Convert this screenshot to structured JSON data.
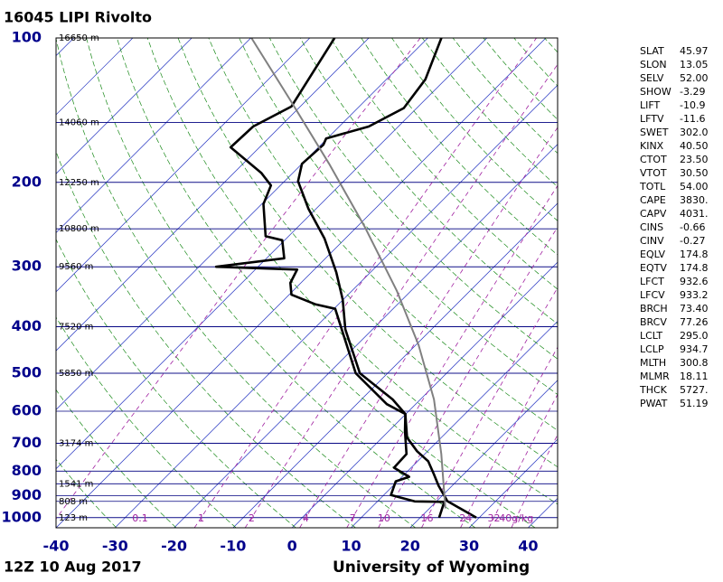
{
  "chart_data": {
    "type": "skewt",
    "title": "16045 LIPI Rivolto",
    "subtitle": "12Z 10 Aug 2017",
    "source": "University of Wyoming",
    "log_y": true,
    "ylim": [
      100,
      1050
    ],
    "yticks": [
      100,
      200,
      300,
      400,
      500,
      600,
      700,
      800,
      900,
      1000
    ],
    "xlim": [
      -40,
      45
    ],
    "xticks": [
      -40,
      -30,
      -20,
      -10,
      0,
      10,
      20,
      30,
      40
    ],
    "height_labels": [
      {
        "value": 100,
        "label": "16650 m"
      },
      {
        "value": 150,
        "label": "14060 m"
      },
      {
        "value": 200,
        "label": "12250 m"
      },
      {
        "value": 250,
        "label": "10800 m"
      },
      {
        "value": 300,
        "label": "9560 m"
      },
      {
        "value": 400,
        "label": "7520 m"
      },
      {
        "value": 500,
        "label": "5850 m"
      },
      {
        "value": 700,
        "label": "3174 m"
      },
      {
        "value": 850,
        "label": "1541 m"
      },
      {
        "value": 925,
        "label": "808 m"
      },
      {
        "value": 1000,
        "label": "123 m"
      }
    ],
    "mixing_ratios": [
      0.1,
      1,
      2,
      4,
      7,
      10,
      16,
      24,
      32,
      {
        "value": 40,
        "label": "40g/kg"
      }
    ],
    "series": [
      {
        "color": "#000000",
        "pressure": [
          1000,
          924,
          858,
          811,
          763,
          727,
          681,
          608,
          567,
          500,
          405,
          351,
          308,
          262,
          227,
          199,
          183,
          167,
          162,
          153,
          140,
          122,
          100
        ],
        "temperature": [
          29.5,
          21.8,
          17.7,
          14.9,
          11.8,
          8.2,
          4.2,
          -0.1,
          -4.7,
          -14.7,
          -24.6,
          -30.1,
          -35.8,
          -43.5,
          -51.3,
          -57.7,
          -60.0,
          -59.6,
          -60.2,
          -55.0,
          -52.2,
          -53.4,
          -57.7
        ]
      },
      {
        "color": "#000000",
        "pressure": [
          1000,
          927,
          925,
          897,
          840,
          822,
          787,
          737,
          661,
          608,
          580,
          500,
          367,
          359,
          343,
          324,
          304,
          300,
          288,
          264,
          259,
          222,
          203,
          191,
          169,
          153,
          139,
          100
        ],
        "temperature": [
          23.2,
          21.4,
          16.3,
          11.2,
          9.7,
          11.2,
          7.1,
          6.9,
          2.8,
          -0.1,
          -4.9,
          -15.4,
          -29.8,
          -34.0,
          -39.6,
          -41.8,
          -42.9,
          -57.1,
          -47.0,
          -50.4,
          -53.9,
          -59.7,
          -61.6,
          -65.4,
          -74.9,
          -74.6,
          -71.5,
          -75.8
        ]
      },
      {
        "color": "#808080",
        "pressure": [
          957,
          737,
          567,
          437,
          336,
          248,
          183,
          134,
          100
        ],
        "temperature": [
          22.7,
          12.8,
          2.3,
          -9.5,
          -22.5,
          -38.6,
          -55.4,
          -73.1,
          -89.9
        ]
      }
    ],
    "stats": [
      [
        "SLAT",
        "45.97"
      ],
      [
        "SLON",
        "13.05"
      ],
      [
        "SELV",
        "52.00"
      ],
      [
        "SHOW",
        "-3.29"
      ],
      [
        "LIFT",
        "-10.9"
      ],
      [
        "LFTV",
        "-11.6"
      ],
      [
        "SWET",
        "302.0"
      ],
      [
        "KINX",
        "40.50"
      ],
      [
        "CTOT",
        "23.50"
      ],
      [
        "VTOT",
        "30.50"
      ],
      [
        "TOTL",
        "54.00"
      ],
      [
        "CAPE",
        "3830."
      ],
      [
        "CAPV",
        "4031."
      ],
      [
        "CINS",
        "-0.66"
      ],
      [
        "CINV",
        "-0.27"
      ],
      [
        "EQLV",
        "174.8"
      ],
      [
        "EQTV",
        "174.8"
      ],
      [
        "LFCT",
        "932.6"
      ],
      [
        "LFCV",
        "933.2"
      ],
      [
        "BRCH",
        "73.40"
      ],
      [
        "BRCV",
        "77.26"
      ],
      [
        "LCLT",
        "295.0"
      ],
      [
        "LCLP",
        "934.7"
      ],
      [
        "MLTH",
        "300.8"
      ],
      [
        "MLMR",
        "18.11"
      ],
      [
        "THCK",
        "5727."
      ],
      [
        "PWAT",
        "51.19"
      ]
    ]
  }
}
